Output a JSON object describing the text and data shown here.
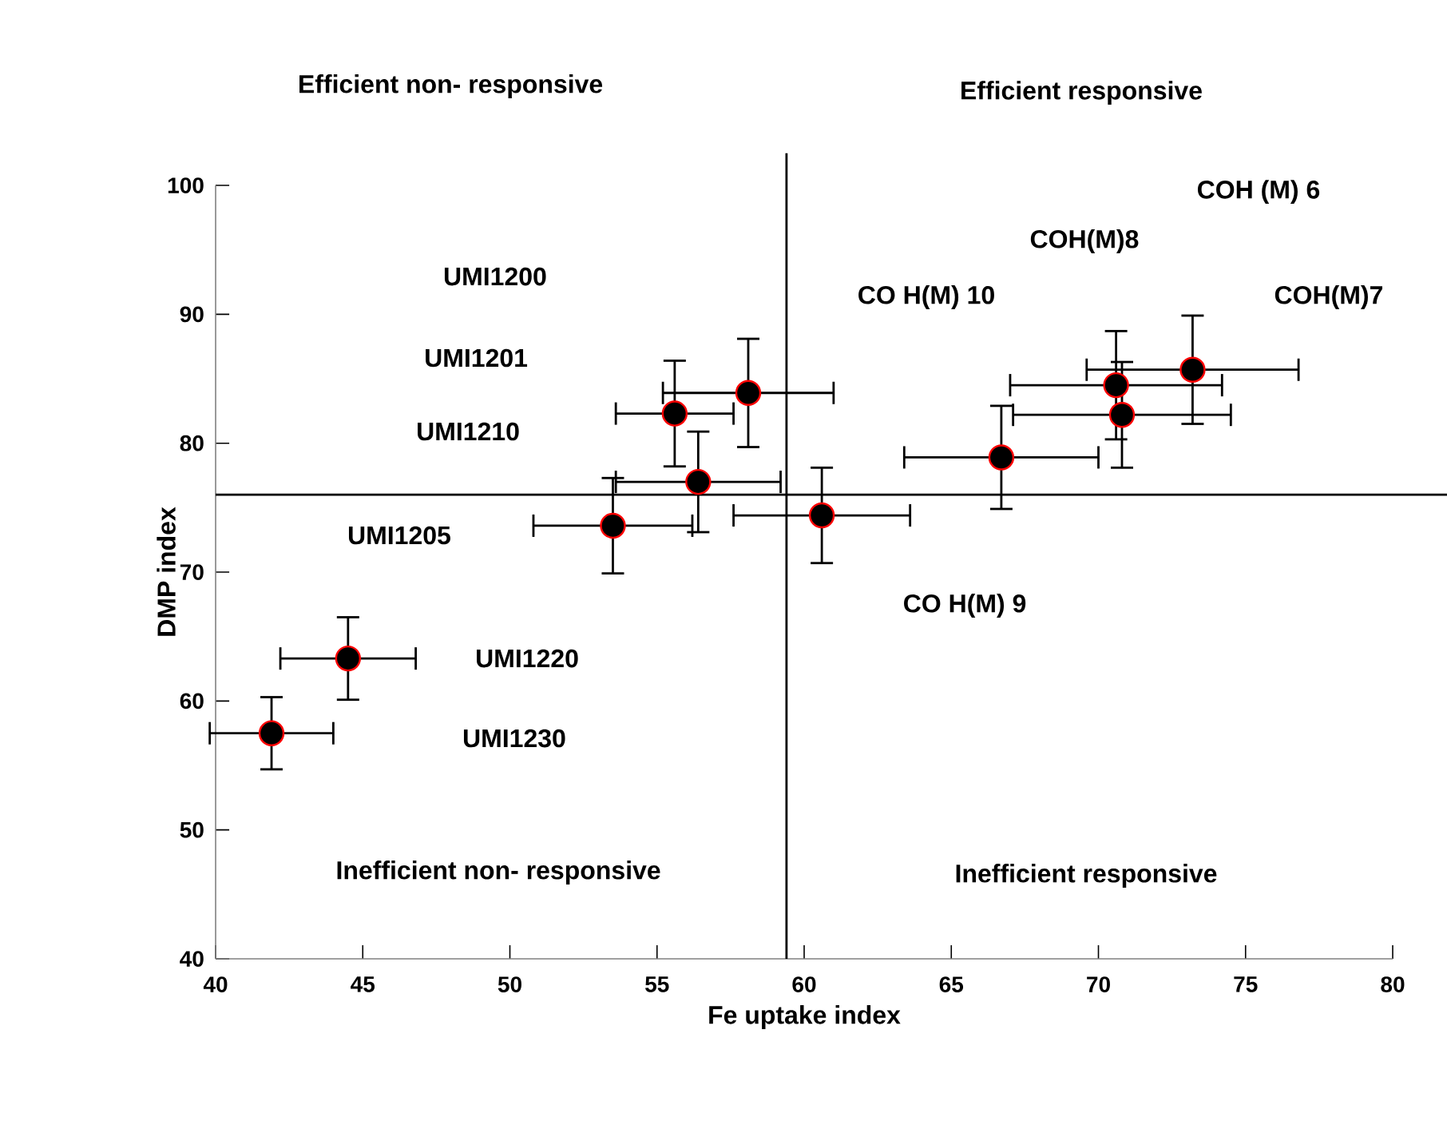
{
  "chart_data": {
    "type": "scatter",
    "xlabel": "Fe uptake index",
    "ylabel": "DMP index",
    "xlim": [
      40,
      80
    ],
    "xticks": [
      40,
      45,
      50,
      55,
      60,
      65,
      70,
      75,
      80
    ],
    "ylim": [
      40,
      100
    ],
    "yticks": [
      40,
      50,
      60,
      70,
      80,
      90,
      100
    ],
    "grid": false,
    "series": [
      {
        "color": "#000000",
        "x": [
          41.9,
          44.5,
          53.5,
          56.4,
          55.6,
          58.1,
          60.6,
          66.7,
          70.6,
          70.8,
          73.2
        ],
        "values": [
          57.5,
          63.3,
          73.6,
          77.0,
          82.3,
          83.9,
          74.4,
          78.9,
          84.5,
          82.2,
          85.7
        ],
        "errors": [
          2.8,
          3.2,
          3.7,
          3.9,
          4.1,
          4.2,
          3.7,
          4.0,
          4.2,
          4.1,
          4.2
        ],
        "xerrors": [
          2.1,
          2.3,
          2.7,
          2.8,
          2.0,
          2.9,
          3.0,
          3.3,
          3.6,
          3.7,
          3.6
        ]
      }
    ],
    "ref_lines": [
      {
        "axis": "x",
        "value": 59.4,
        "color": "#000000"
      },
      {
        "axis": "y",
        "value": 76,
        "color": "#000000"
      }
    ],
    "annotations": [
      "Efficient  non- responsive",
      "Efficient  responsive",
      "Inefficient  non- responsive",
      "Inefficient   responsive",
      "UMI1200",
      "UMI1201",
      "UMI1210",
      "UMI1205",
      "UMI1220",
      "UMI1230",
      "COH (M) 6",
      "COH(M)8",
      "CO H(M) 10",
      "COH(M)7",
      "CO H(M) 9"
    ]
  }
}
